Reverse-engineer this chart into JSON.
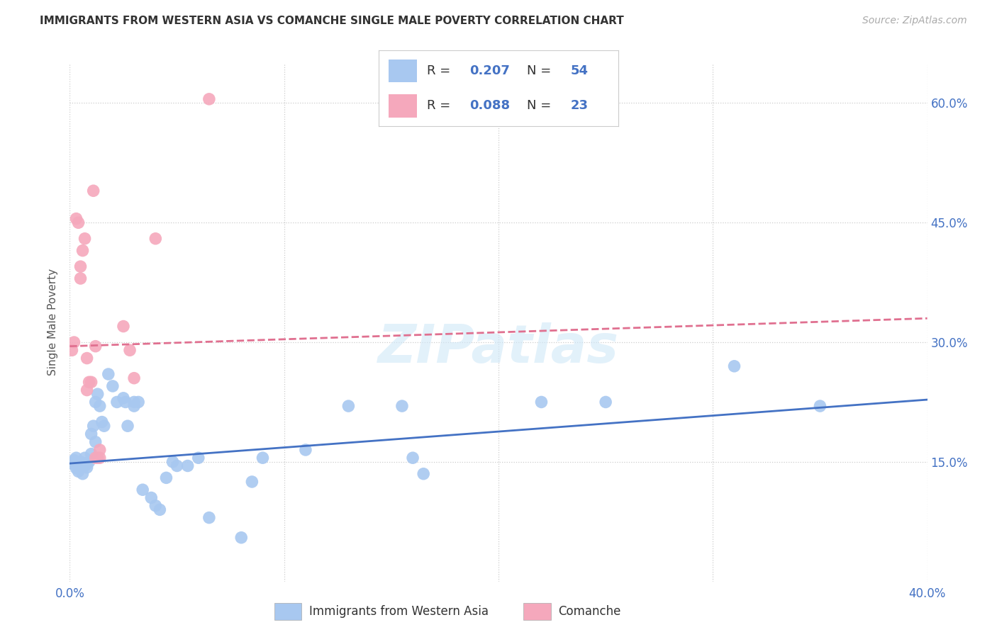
{
  "title": "IMMIGRANTS FROM WESTERN ASIA VS COMANCHE SINGLE MALE POVERTY CORRELATION CHART",
  "source": "Source: ZipAtlas.com",
  "ylabel": "Single Male Poverty",
  "xlim": [
    0.0,
    0.4
  ],
  "ylim": [
    0.0,
    0.65
  ],
  "color_blue": "#A8C8F0",
  "color_pink": "#F5A8BC",
  "line_blue": "#4472C4",
  "line_pink": "#E07090",
  "watermark": "ZIPatlas",
  "blue_scatter_x": [
    0.001,
    0.002,
    0.003,
    0.003,
    0.004,
    0.004,
    0.005,
    0.006,
    0.006,
    0.007,
    0.007,
    0.008,
    0.008,
    0.009,
    0.01,
    0.01,
    0.011,
    0.012,
    0.012,
    0.013,
    0.014,
    0.015,
    0.016,
    0.018,
    0.02,
    0.022,
    0.025,
    0.026,
    0.027,
    0.03,
    0.03,
    0.032,
    0.034,
    0.038,
    0.04,
    0.042,
    0.045,
    0.048,
    0.05,
    0.055,
    0.06,
    0.065,
    0.08,
    0.085,
    0.09,
    0.11,
    0.13,
    0.155,
    0.16,
    0.165,
    0.22,
    0.25,
    0.31,
    0.35
  ],
  "blue_scatter_y": [
    0.148,
    0.152,
    0.155,
    0.142,
    0.145,
    0.138,
    0.15,
    0.148,
    0.135,
    0.145,
    0.155,
    0.143,
    0.148,
    0.15,
    0.16,
    0.185,
    0.195,
    0.175,
    0.225,
    0.235,
    0.22,
    0.2,
    0.195,
    0.26,
    0.245,
    0.225,
    0.23,
    0.225,
    0.195,
    0.225,
    0.22,
    0.225,
    0.115,
    0.105,
    0.095,
    0.09,
    0.13,
    0.15,
    0.145,
    0.145,
    0.155,
    0.08,
    0.055,
    0.125,
    0.155,
    0.165,
    0.22,
    0.22,
    0.155,
    0.135,
    0.225,
    0.225,
    0.27,
    0.22
  ],
  "pink_scatter_x": [
    0.001,
    0.002,
    0.003,
    0.004,
    0.005,
    0.005,
    0.006,
    0.007,
    0.008,
    0.008,
    0.009,
    0.01,
    0.011,
    0.012,
    0.012,
    0.013,
    0.014,
    0.014,
    0.025,
    0.028,
    0.03,
    0.04,
    0.065
  ],
  "pink_scatter_y": [
    0.29,
    0.3,
    0.455,
    0.45,
    0.38,
    0.395,
    0.415,
    0.43,
    0.24,
    0.28,
    0.25,
    0.25,
    0.49,
    0.295,
    0.155,
    0.155,
    0.155,
    0.165,
    0.32,
    0.29,
    0.255,
    0.43,
    0.605
  ],
  "blue_line_x": [
    0.0,
    0.4
  ],
  "blue_line_y": [
    0.148,
    0.228
  ],
  "pink_line_x": [
    0.0,
    0.4
  ],
  "pink_line_y": [
    0.295,
    0.33
  ],
  "xtick_positions": [
    0.0,
    0.1,
    0.2,
    0.3,
    0.4
  ],
  "xtick_labels": [
    "0.0%",
    "",
    "",
    "",
    "40.0%"
  ],
  "ytick_positions": [
    0.15,
    0.3,
    0.45,
    0.6
  ],
  "ytick_labels_right": [
    "15.0%",
    "30.0%",
    "45.0%",
    "60.0%"
  ]
}
